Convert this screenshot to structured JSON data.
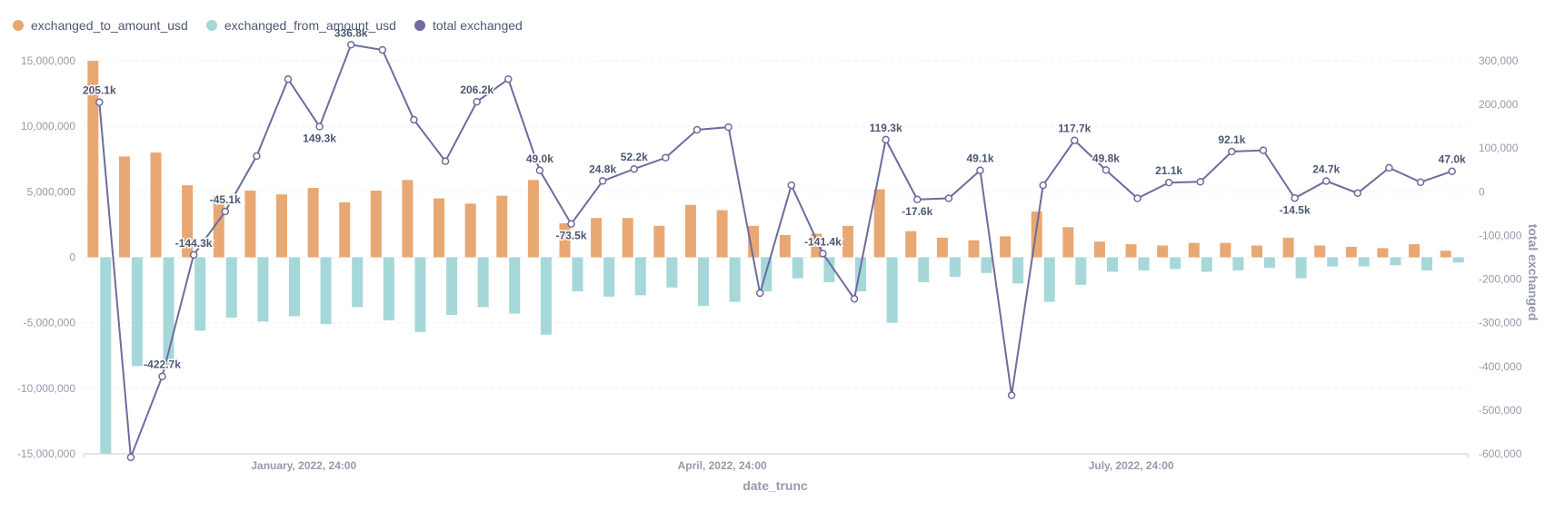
{
  "chart_data": {
    "type": "bar+line",
    "title": "",
    "xlabel": "date_trunc",
    "ylabel_right": "total exchanged",
    "ylim_left": [
      -15000000,
      15000000
    ],
    "ylim_right": [
      -600000,
      300000
    ],
    "yticks_left": [
      "15,000,000",
      "10,000,000",
      "5,000,000",
      "0",
      "-5,000,000",
      "-10,000,000",
      "-15,000,000"
    ],
    "yticks_left_values": [
      15000000,
      10000000,
      5000000,
      0,
      -5000000,
      -10000000,
      -15000000
    ],
    "yticks_right": [
      "300,000",
      "200,000",
      "100,000",
      "0",
      "-100,000",
      "-200,000",
      "-300,000",
      "-400,000",
      "-500,000",
      "-600,000"
    ],
    "yticks_right_values": [
      300000,
      200000,
      100000,
      0,
      -100000,
      -200000,
      -300000,
      -400000,
      -500000,
      -600000
    ],
    "xticks": [
      {
        "label": "January, 2022, 24:00",
        "index": 6.5
      },
      {
        "label": "April, 2022, 24:00",
        "index": 19.8
      },
      {
        "label": "July, 2022, 24:00",
        "index": 32.8
      }
    ],
    "series": [
      {
        "name": "exchanged_to_amount_usd",
        "type": "bar",
        "color": "#e8a873",
        "values": [
          15500000,
          7700000,
          8000000,
          5500000,
          4700000,
          5100000,
          4800000,
          5300000,
          4200000,
          5100000,
          5900000,
          4500000,
          4100000,
          4700000,
          5900000,
          2600000,
          3000000,
          3000000,
          2400000,
          4000000,
          3600000,
          2400000,
          1700000,
          1800000,
          2400000,
          5200000,
          2000000,
          1500000,
          1300000,
          1600000,
          3500000,
          2300000,
          1200000,
          1000000,
          900000,
          1100000,
          1100000,
          900000,
          1500000,
          900000,
          800000,
          700000,
          1000000,
          500000
        ]
      },
      {
        "name": "exchanged_from_amount_usd",
        "type": "bar",
        "color": "#a6d7d9",
        "values": [
          -15300000,
          -8300000,
          -8500000,
          -5600000,
          -4600000,
          -4900000,
          -4500000,
          -5100000,
          -3800000,
          -4800000,
          -5700000,
          -4400000,
          -3800000,
          -4300000,
          -5900000,
          -2600000,
          -3000000,
          -2900000,
          -2300000,
          -3700000,
          -3400000,
          -2600000,
          -1600000,
          -1900000,
          -2600000,
          -5000000,
          -1900000,
          -1500000,
          -1200000,
          -2000000,
          -3400000,
          -2100000,
          -1100000,
          -1000000,
          -900000,
          -1100000,
          -1000000,
          -800000,
          -1600000,
          -700000,
          -700000,
          -600000,
          -1000000,
          -400000
        ]
      },
      {
        "name": "total exchanged",
        "type": "line",
        "color": "#6e6b9e",
        "values": [
          205100,
          -608000,
          -422700,
          -144300,
          -45100,
          82000,
          258000,
          149300,
          336800,
          325000,
          165000,
          70000,
          206200,
          258000,
          49000,
          -73500,
          24800,
          52200,
          78000,
          142000,
          148000,
          -232000,
          15000,
          -141400,
          -245000,
          119300,
          -17600,
          -15000,
          49100,
          -466000,
          15000,
          117700,
          49800,
          -15000,
          21100,
          23000,
          92100,
          95000,
          -14500,
          24700,
          -3000,
          55000,
          22000,
          47000
        ],
        "labels": {
          "0": "205.1k",
          "2": "-422.7k",
          "3": "-144.3k",
          "4": "-45.1k",
          "7": "149.3k",
          "8": "336.8k",
          "12": "206.2k",
          "14": "49.0k",
          "15": "-73.5k",
          "16": "24.8k",
          "17": "52.2k",
          "23": "-141.4k",
          "25": "119.3k",
          "26": "-17.6k",
          "28": "49.1k",
          "31": "117.7k",
          "32": "49.8k",
          "34": "21.1k",
          "36": "92.1k",
          "38": "-14.5k",
          "39": "24.7k",
          "43": "47.0k"
        }
      }
    ],
    "legend_position": "top-left"
  }
}
